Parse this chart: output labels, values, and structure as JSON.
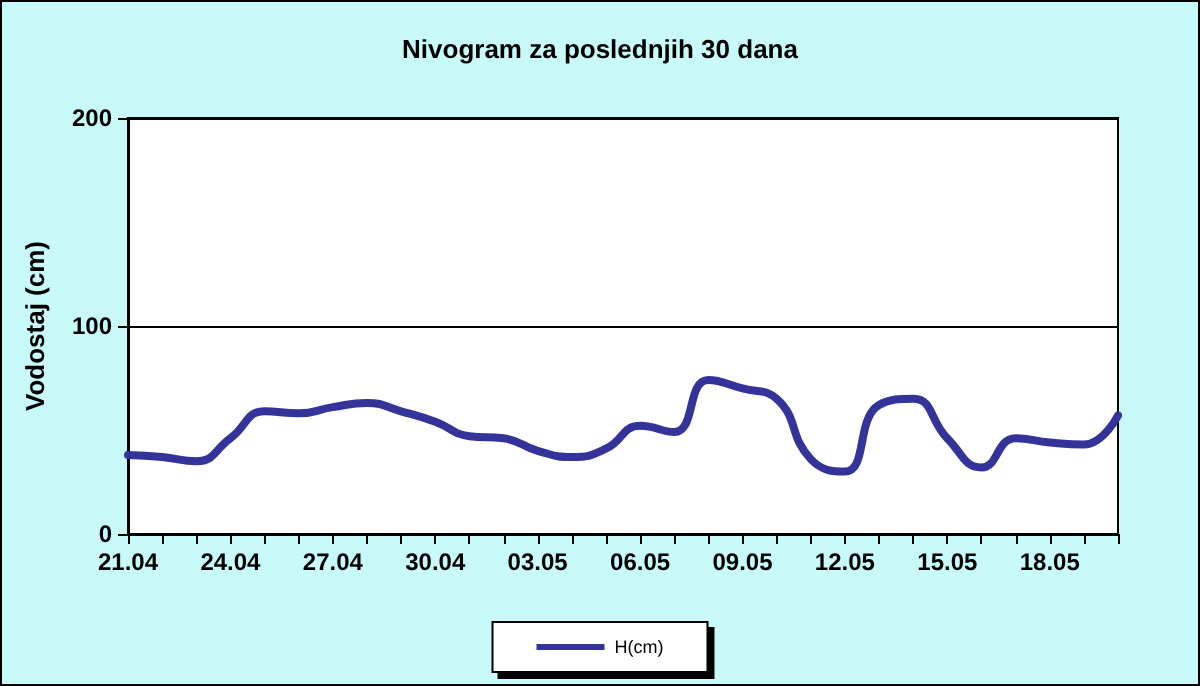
{
  "chart_data": {
    "type": "line",
    "title": "Nivogram za poslednjih 30 dana",
    "ylabel": "Vodostaj (cm)",
    "categories": [
      "21.04",
      null,
      null,
      "24.04",
      null,
      null,
      "27.04",
      null,
      null,
      "30.04",
      null,
      null,
      "03.05",
      null,
      null,
      "06.05",
      null,
      null,
      "09.05",
      null,
      null,
      "12.05",
      null,
      null,
      "15.05",
      null,
      null,
      "18.05",
      null,
      null
    ],
    "series": [
      {
        "name": "H(cm)",
        "color": "#333399",
        "values": [
          38,
          37,
          35,
          46,
          59,
          58,
          61,
          63,
          59,
          54,
          47,
          46,
          40,
          37,
          41,
          52,
          49,
          74,
          70,
          65,
          36,
          30,
          62,
          65,
          46,
          32,
          46,
          44,
          43,
          57
        ]
      }
    ],
    "ylim": [
      0,
      200
    ],
    "yticks": [
      0,
      100,
      200
    ],
    "grid": "y",
    "legend": "bottom",
    "marker": "none",
    "line_style": "solid"
  }
}
